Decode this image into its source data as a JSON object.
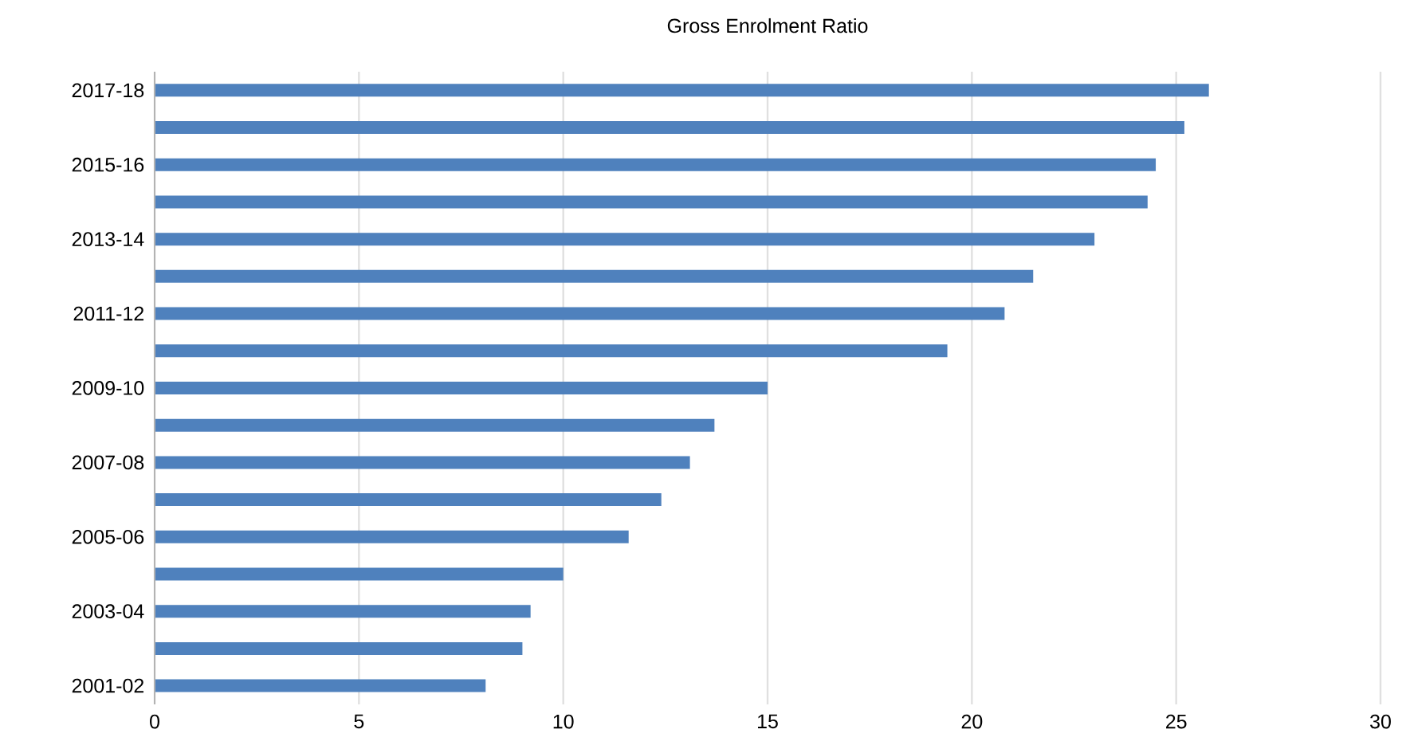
{
  "chart_data": {
    "type": "bar",
    "orientation": "horizontal",
    "title": "Gross Enrolment Ratio",
    "categories": [
      "2017-18",
      null,
      "2015-16",
      null,
      "2013-14",
      null,
      "2011-12",
      null,
      "2009-10",
      null,
      "2007-08",
      null,
      "2005-06",
      null,
      "2003-04",
      null,
      "2001-02"
    ],
    "values": [
      25.8,
      25.2,
      24.5,
      24.3,
      23.0,
      21.5,
      20.8,
      19.4,
      15.0,
      13.7,
      13.1,
      12.4,
      11.6,
      10.0,
      9.2,
      9.0,
      8.1
    ],
    "color": "#4f81bd",
    "xlim": [
      0,
      30
    ],
    "xticks": [
      0,
      5,
      10,
      15,
      20,
      25,
      30
    ],
    "grid": "x"
  }
}
